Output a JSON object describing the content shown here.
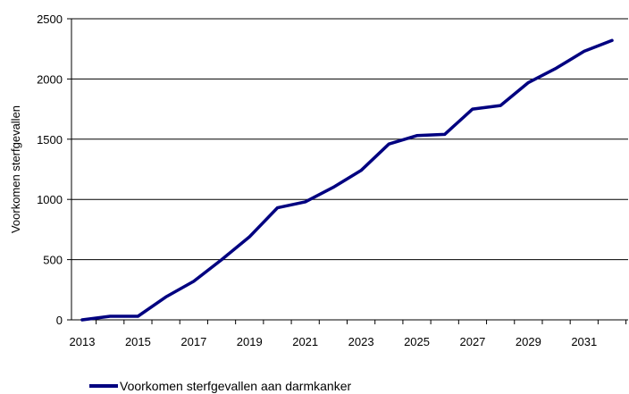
{
  "chart_data": {
    "type": "line",
    "title": "",
    "xlabel": "",
    "ylabel": "Voorkomen sterfgevallen",
    "ylim": [
      0,
      2500
    ],
    "yticks": [
      0,
      500,
      1000,
      1500,
      2000,
      2500
    ],
    "xlim": [
      2013,
      2032
    ],
    "xtick_labels": [
      "2013",
      "2015",
      "2017",
      "2019",
      "2021",
      "2023",
      "2025",
      "2027",
      "2029",
      "2031"
    ],
    "grid": true,
    "legend_position": "bottom",
    "series": [
      {
        "name": "Voorkomen sterfgevallen aan darmkanker",
        "color": "#000080",
        "x": [
          2013,
          2014,
          2015,
          2016,
          2017,
          2018,
          2019,
          2020,
          2021,
          2022,
          2023,
          2024,
          2025,
          2026,
          2027,
          2028,
          2029,
          2030,
          2031,
          2032
        ],
        "y": [
          0,
          30,
          30,
          190,
          320,
          500,
          690,
          930,
          980,
          1100,
          1240,
          1460,
          1530,
          1540,
          1750,
          1780,
          1970,
          2090,
          2230,
          2320
        ]
      }
    ]
  }
}
